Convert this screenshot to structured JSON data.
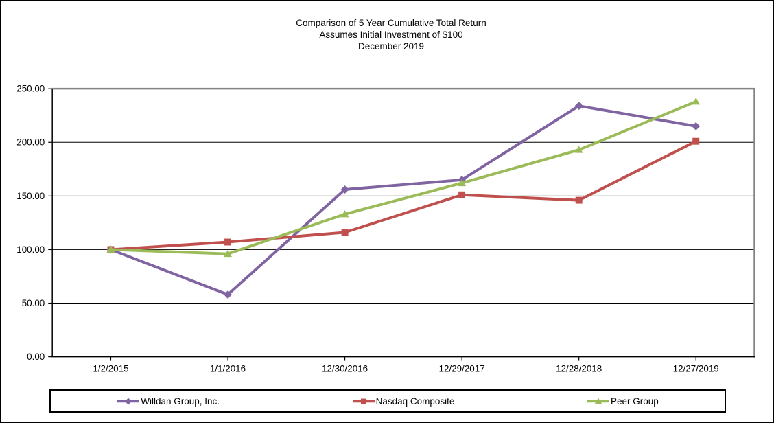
{
  "chart_data": {
    "type": "line",
    "title": "Comparison of 5 Year Cumulative Total Return",
    "subtitle": "Assumes Initial Investment of $100",
    "subtitle2": "December 2019",
    "categories": [
      "1/2/2015",
      "1/1/2016",
      "12/30/2016",
      "12/29/2017",
      "12/28/2018",
      "12/27/2019"
    ],
    "series": [
      {
        "name": "Willdan Group, Inc.",
        "marker": "diamond",
        "color": "#8064A2",
        "values": [
          100,
          58,
          156,
          165,
          234,
          215
        ]
      },
      {
        "name": "Nasdaq Composite",
        "marker": "square",
        "color": "#C0504D",
        "values": [
          100,
          107,
          116,
          151,
          146,
          201
        ]
      },
      {
        "name": "Peer Group",
        "marker": "triangle",
        "color": "#9BBB59",
        "values": [
          100,
          96,
          133,
          162,
          193,
          238
        ]
      }
    ],
    "ylim": [
      0,
      250
    ],
    "ytick_step": 50,
    "ytick_labels": [
      "0.00",
      "50.00",
      "100.00",
      "150.00",
      "200.00",
      "250.00"
    ],
    "xlabel": "",
    "ylabel": "",
    "grid": true,
    "legend_position": "bottom",
    "colors": {
      "plot_border": "#848484",
      "axis_line": "#000000",
      "gridline": "#000000",
      "text": "#000000"
    }
  }
}
